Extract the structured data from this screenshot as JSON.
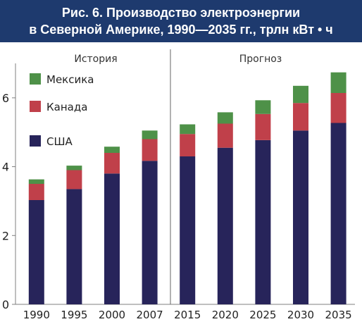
{
  "header": {
    "title_line1": "Рис. 6. Производство электроэнергии",
    "title_line2": "в Северной Америке, 1990—2035 гг., трлн кВт • ч"
  },
  "sections": {
    "history": "История",
    "forecast": "Прогноз"
  },
  "chart_data": {
    "type": "bar",
    "stacked": true,
    "categories": [
      "1990",
      "1995",
      "2000",
      "2007",
      "2015",
      "2020",
      "2025",
      "2030",
      "2035"
    ],
    "series": [
      {
        "name": "США",
        "color": "#27245a",
        "values": [
          3.03,
          3.35,
          3.8,
          4.17,
          4.3,
          4.55,
          4.77,
          5.05,
          5.27
        ]
      },
      {
        "name": "Канада",
        "color": "#c0404a",
        "values": [
          0.47,
          0.55,
          0.6,
          0.63,
          0.65,
          0.7,
          0.76,
          0.8,
          0.87
        ]
      },
      {
        "name": "Мексика",
        "color": "#4e9148",
        "values": [
          0.13,
          0.13,
          0.18,
          0.25,
          0.28,
          0.33,
          0.4,
          0.5,
          0.6
        ]
      }
    ],
    "legend": [
      "Мексика",
      "Канада",
      "США"
    ],
    "legend_placement": "top-left",
    "ylim": [
      0,
      7
    ],
    "yticks": [
      0,
      2,
      4,
      6
    ],
    "grid": false,
    "divider_between": [
      "2007",
      "2015"
    ]
  }
}
